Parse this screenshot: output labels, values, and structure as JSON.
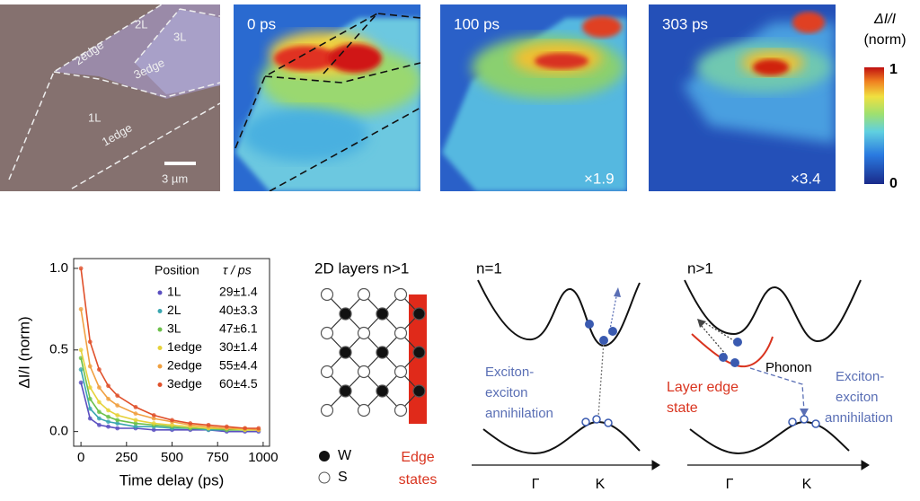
{
  "optical": {
    "labels": [
      "2L",
      "3L",
      "2edge",
      "3edge",
      "1L",
      "1edge"
    ],
    "scale_bar": "3 µm"
  },
  "maps": [
    {
      "time": "0 ps"
    },
    {
      "time": "100 ps",
      "factor": "×1.9"
    },
    {
      "time": "303 ps",
      "factor": "×3.4"
    }
  ],
  "colorbar": {
    "title": "ΔI/I",
    "unit": "(norm)",
    "max": "1",
    "min": "0"
  },
  "chart_data": {
    "type": "line",
    "x": [
      0,
      50,
      100,
      150,
      200,
      300,
      400,
      500,
      600,
      700,
      800,
      900,
      975
    ],
    "xlim": [
      -40,
      1035
    ],
    "ylim": [
      -0.09,
      1.06
    ],
    "xticks": [
      0,
      250,
      500,
      750,
      1000
    ],
    "yticks": [
      {
        "value": 0,
        "label": "0.0"
      },
      {
        "value": 0.5,
        "label": "0.5"
      },
      {
        "value": 1,
        "label": "1.0"
      }
    ],
    "xlabel": "Time delay (ps)",
    "ylabel": "ΔI/I (norm)",
    "legend_headers": [
      "Position",
      "τ / ps"
    ],
    "series": [
      {
        "name": "1L",
        "tau": "29±1.4",
        "color": "#5a4fc0",
        "values": [
          0.3,
          0.08,
          0.04,
          0.03,
          0.02,
          0.02,
          0.01,
          0.01,
          0.01,
          0.01,
          0,
          0,
          0
        ]
      },
      {
        "name": "2L",
        "tau": "40±3.3",
        "color": "#3aa6b0",
        "values": [
          0.38,
          0.14,
          0.08,
          0.06,
          0.05,
          0.03,
          0.03,
          0.02,
          0.02,
          0.01,
          0.01,
          0.01,
          0.01
        ]
      },
      {
        "name": "3L",
        "tau": "47±6.1",
        "color": "#6cc04a",
        "values": [
          0.45,
          0.2,
          0.12,
          0.09,
          0.07,
          0.05,
          0.04,
          0.03,
          0.02,
          0.02,
          0.01,
          0.01,
          0.01
        ]
      },
      {
        "name": "1edge",
        "tau": "30±1.4",
        "color": "#e6d23a",
        "values": [
          0.5,
          0.27,
          0.18,
          0.13,
          0.1,
          0.07,
          0.05,
          0.04,
          0.03,
          0.02,
          0.02,
          0.01,
          0.01
        ]
      },
      {
        "name": "2edge",
        "tau": "55±4.4",
        "color": "#f0a040",
        "values": [
          0.75,
          0.4,
          0.27,
          0.2,
          0.16,
          0.11,
          0.08,
          0.06,
          0.04,
          0.03,
          0.02,
          0.02,
          0.01
        ]
      },
      {
        "name": "3edge",
        "tau": "60±4.5",
        "color": "#e0502a",
        "values": [
          1.0,
          0.55,
          0.38,
          0.28,
          0.22,
          0.15,
          0.1,
          0.07,
          0.05,
          0.04,
          0.03,
          0.02,
          0.02
        ]
      }
    ]
  },
  "lattice": {
    "title": "2D layers n>1",
    "legend": [
      "W",
      "S"
    ],
    "edge_label": [
      "Edge",
      "states"
    ]
  },
  "bands": [
    {
      "title": "n=1",
      "annotation": [
        "Exciton-",
        "exciton",
        "annihilation"
      ],
      "axis_labels": [
        "Γ",
        "K"
      ]
    },
    {
      "title": "n>1",
      "phonon": "Phonon",
      "edge_label": [
        "Layer edge",
        "state"
      ],
      "annotation": [
        "Exciton-",
        "exciton",
        "annihilation"
      ],
      "axis_labels": [
        "Γ",
        "K"
      ]
    }
  ]
}
